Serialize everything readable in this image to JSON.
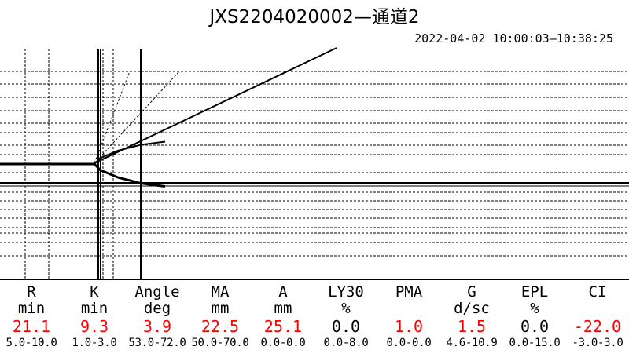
{
  "title": "JXS2204020002—通道2",
  "time_range": "2022-04-02 10:00:03—10:38:25",
  "colors": {
    "normal": "#000000",
    "abnormal": "#ff0000"
  },
  "chart_data": {
    "type": "line",
    "title": "JXS2204020002—通道2",
    "series": [
      {
        "name": "",
        "x": [
          0,
          16,
          17,
          20,
          24,
          28
        ],
        "y": [
          0,
          0,
          -2,
          -4.5,
          -6.5,
          -7.5
        ]
      },
      {
        "name": "",
        "x": [
          0,
          16,
          17,
          20,
          24,
          28
        ],
        "y": [
          0,
          0,
          2,
          4.5,
          6.5,
          7.5
        ]
      }
    ],
    "reference_lines": [
      "R",
      "K",
      "MA",
      "Angle"
    ]
  },
  "params": [
    {
      "name": "R",
      "unit": "min",
      "value": "21.1",
      "range": "5.0-10.0",
      "abnormal": true
    },
    {
      "name": "K",
      "unit": "min",
      "value": "9.3",
      "range": "1.0-3.0",
      "abnormal": true
    },
    {
      "name": "Angle",
      "unit": "deg",
      "value": "3.9",
      "range": "53.0-72.0",
      "abnormal": true
    },
    {
      "name": "MA",
      "unit": "mm",
      "value": "22.5",
      "range": "50.0-70.0",
      "abnormal": true
    },
    {
      "name": "A",
      "unit": "mm",
      "value": "25.1",
      "range": "0.0-0.0",
      "abnormal": true
    },
    {
      "name": "LY30",
      "unit": "%",
      "value": "0.0",
      "range": "0.0-8.0",
      "abnormal": false
    },
    {
      "name": "PMA",
      "unit": "",
      "value": "1.0",
      "range": "0.0-0.0",
      "abnormal": true
    },
    {
      "name": "G",
      "unit": "d/sc",
      "value": "1.5",
      "range": "4.6-10.9",
      "abnormal": true
    },
    {
      "name": "EPL",
      "unit": "%",
      "value": "0.0",
      "range": "0.0-15.0",
      "abnormal": false
    },
    {
      "name": "CI",
      "unit": "",
      "value": "-22.0",
      "range": "-3.0-3.0",
      "abnormal": true
    }
  ]
}
